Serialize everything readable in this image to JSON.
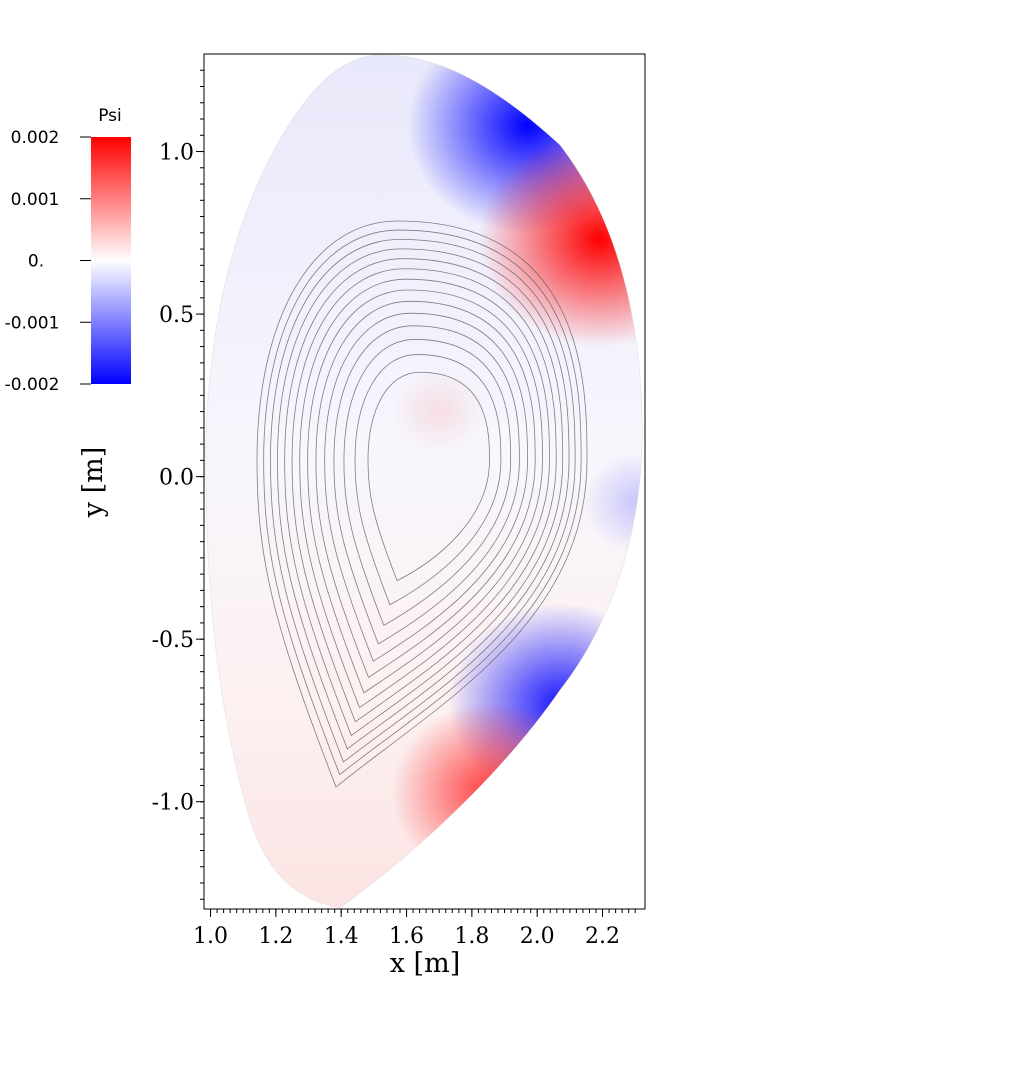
{
  "chart_data": {
    "type": "heatmap",
    "xlabel": "x [m]",
    "ylabel": "y [m]",
    "xlim": [
      0.98,
      2.33
    ],
    "ylim": [
      -1.33,
      1.3
    ],
    "x_ticks": [
      "1.0",
      "1.2",
      "1.4",
      "1.6",
      "1.8",
      "2.0",
      "2.2"
    ],
    "x_tick_values": [
      1.0,
      1.2,
      1.4,
      1.6,
      1.8,
      2.0,
      2.2
    ],
    "y_ticks": [
      "1.0",
      "0.5",
      "0.0",
      "-0.5",
      "-1.0"
    ],
    "y_tick_values": [
      1.0,
      0.5,
      0.0,
      -0.5,
      -1.0
    ],
    "colorbar": {
      "title": "Psi",
      "labels": [
        "0.002",
        "0.001",
        "0.",
        "-0.001",
        "-0.002"
      ],
      "values": [
        0.002,
        0.001,
        0.0,
        -0.001,
        -0.002
      ],
      "range": [
        -0.002,
        0.002
      ],
      "colors": {
        "min": "#0000ff",
        "mid": "#ffffff",
        "max": "#ff0000"
      }
    },
    "field_hotspots": [
      {
        "x": 1.97,
        "y": 1.08,
        "value": -0.002
      },
      {
        "x": 2.19,
        "y": 0.73,
        "value": 0.002
      },
      {
        "x": 2.07,
        "y": -0.7,
        "value": -0.0018
      },
      {
        "x": 1.86,
        "y": -0.97,
        "value": 0.0015
      },
      {
        "x": 1.7,
        "y": 0.2,
        "value": 0.0002
      },
      {
        "x": 2.31,
        "y": -0.08,
        "value": -0.0004
      }
    ],
    "flux_surfaces": {
      "center": [
        1.68,
        0.05
      ],
      "count": 14,
      "color": "#555555"
    }
  }
}
